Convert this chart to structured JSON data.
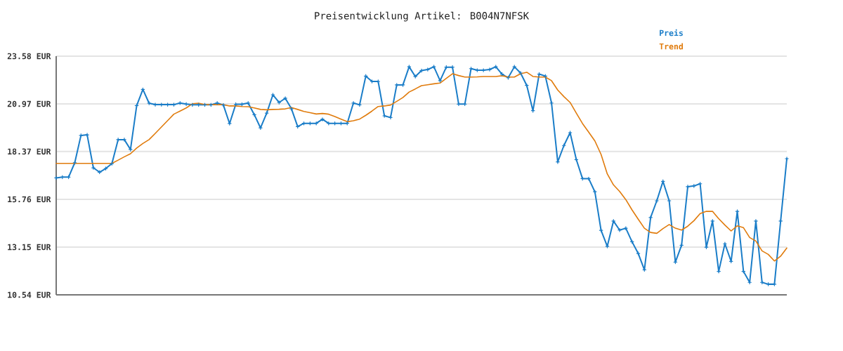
{
  "chart_data": {
    "type": "line",
    "title": "Preisentwicklung Artikel: B004N7NFSK",
    "categories": [
      null,
      null,
      null,
      null,
      null,
      null,
      null,
      null,
      null,
      null,
      null,
      null,
      null,
      null,
      null,
      null,
      null,
      null,
      null,
      null,
      null,
      null,
      null,
      null,
      null,
      null,
      null,
      null,
      null,
      null,
      null,
      null,
      null,
      null,
      null,
      null,
      null,
      null,
      null,
      null,
      null,
      null,
      null,
      null,
      null,
      null,
      null,
      null,
      null,
      null,
      null,
      null,
      null,
      null,
      null,
      null,
      null,
      null,
      null,
      null,
      null,
      null,
      null,
      null,
      null,
      null,
      null,
      null,
      null,
      null,
      null,
      null,
      null,
      null,
      null,
      null,
      null,
      null,
      null,
      null,
      null,
      null,
      null,
      null,
      null,
      null,
      null,
      null,
      null,
      null,
      null,
      null,
      null,
      null,
      null,
      null,
      null,
      null,
      null,
      null,
      null,
      null,
      null,
      null,
      null,
      null,
      null,
      null,
      null,
      null,
      null,
      null,
      null,
      null,
      null,
      null,
      null,
      null,
      null
    ],
    "series": [
      {
        "name": "Preis",
        "color": "#1a7dc8",
        "values": [
          16.93,
          16.97,
          16.97,
          17.76,
          19.25,
          19.28,
          17.48,
          17.24,
          17.44,
          17.71,
          19.02,
          19.02,
          18.48,
          20.88,
          21.76,
          21.01,
          20.93,
          20.93,
          20.93,
          20.93,
          21.02,
          20.96,
          20.92,
          20.92,
          20.92,
          20.92,
          21.02,
          20.91,
          19.9,
          20.95,
          20.95,
          21.02,
          20.38,
          19.66,
          20.47,
          21.47,
          21.05,
          21.28,
          20.7,
          19.73,
          19.91,
          19.91,
          19.91,
          20.13,
          19.91,
          19.91,
          19.91,
          19.91,
          21.02,
          20.92,
          22.49,
          22.2,
          22.2,
          20.32,
          20.23,
          22.01,
          22.01,
          23.0,
          22.47,
          22.79,
          22.85,
          23.0,
          22.24,
          22.98,
          22.98,
          20.96,
          20.96,
          22.9,
          22.81,
          22.81,
          22.85,
          23.0,
          22.6,
          22.4,
          23.0,
          22.66,
          21.98,
          20.6,
          22.6,
          22.49,
          21.02,
          17.8,
          18.7,
          19.4,
          17.93,
          16.89,
          16.89,
          16.17,
          14.06,
          13.19,
          14.57,
          14.08,
          14.18,
          13.44,
          12.8,
          11.91,
          14.76,
          15.68,
          16.74,
          15.68,
          12.33,
          13.25,
          16.45,
          16.49,
          16.61,
          13.14,
          14.57,
          11.82,
          13.33,
          12.37,
          15.1,
          11.82,
          11.22,
          14.57,
          11.22,
          11.12,
          11.12,
          14.57,
          17.98
        ]
      },
      {
        "name": "Trend",
        "color": "#e07b0c",
        "marker": "none",
        "values": [
          17.72,
          17.72,
          17.72,
          17.72,
          17.72,
          17.72,
          17.72,
          17.72,
          17.72,
          17.72,
          17.9,
          18.08,
          18.25,
          18.56,
          18.81,
          19.02,
          19.36,
          19.71,
          20.06,
          20.41,
          20.58,
          20.75,
          20.98,
          21.01,
          20.93,
          20.93,
          20.93,
          20.93,
          20.86,
          20.86,
          20.83,
          20.82,
          20.75,
          20.67,
          20.65,
          20.67,
          20.68,
          20.7,
          20.77,
          20.67,
          20.56,
          20.49,
          20.42,
          20.45,
          20.41,
          20.28,
          20.14,
          20.0,
          20.05,
          20.14,
          20.35,
          20.58,
          20.83,
          20.86,
          20.91,
          21.11,
          21.32,
          21.62,
          21.79,
          21.97,
          22.02,
          22.07,
          22.11,
          22.37,
          22.62,
          22.52,
          22.44,
          22.44,
          22.45,
          22.47,
          22.47,
          22.47,
          22.51,
          22.44,
          22.44,
          22.62,
          22.7,
          22.47,
          22.44,
          22.44,
          22.24,
          21.73,
          21.37,
          21.05,
          20.47,
          19.9,
          19.43,
          18.95,
          18.21,
          17.15,
          16.55,
          16.19,
          15.74,
          15.18,
          14.67,
          14.18,
          13.95,
          13.9,
          14.16,
          14.38,
          14.18,
          14.08,
          14.29,
          14.59,
          14.98,
          15.1,
          15.1,
          14.7,
          14.35,
          14.03,
          14.31,
          14.21,
          13.67,
          13.48,
          12.94,
          12.75,
          12.39,
          12.65,
          13.1
        ]
      }
    ],
    "ylim": [
      10.54,
      23.58
    ],
    "yticks": [
      {
        "value": 10.54,
        "label": "10.54 EUR"
      },
      {
        "value": 13.15,
        "label": "13.15 EUR"
      },
      {
        "value": 15.76,
        "label": "15.76 EUR"
      },
      {
        "value": 18.37,
        "label": "18.37 EUR"
      },
      {
        "value": 20.97,
        "label": "20.97 EUR"
      },
      {
        "value": 23.58,
        "label": "23.58 EUR"
      }
    ],
    "grid": "y",
    "legend": "top right",
    "marker": "cross"
  }
}
